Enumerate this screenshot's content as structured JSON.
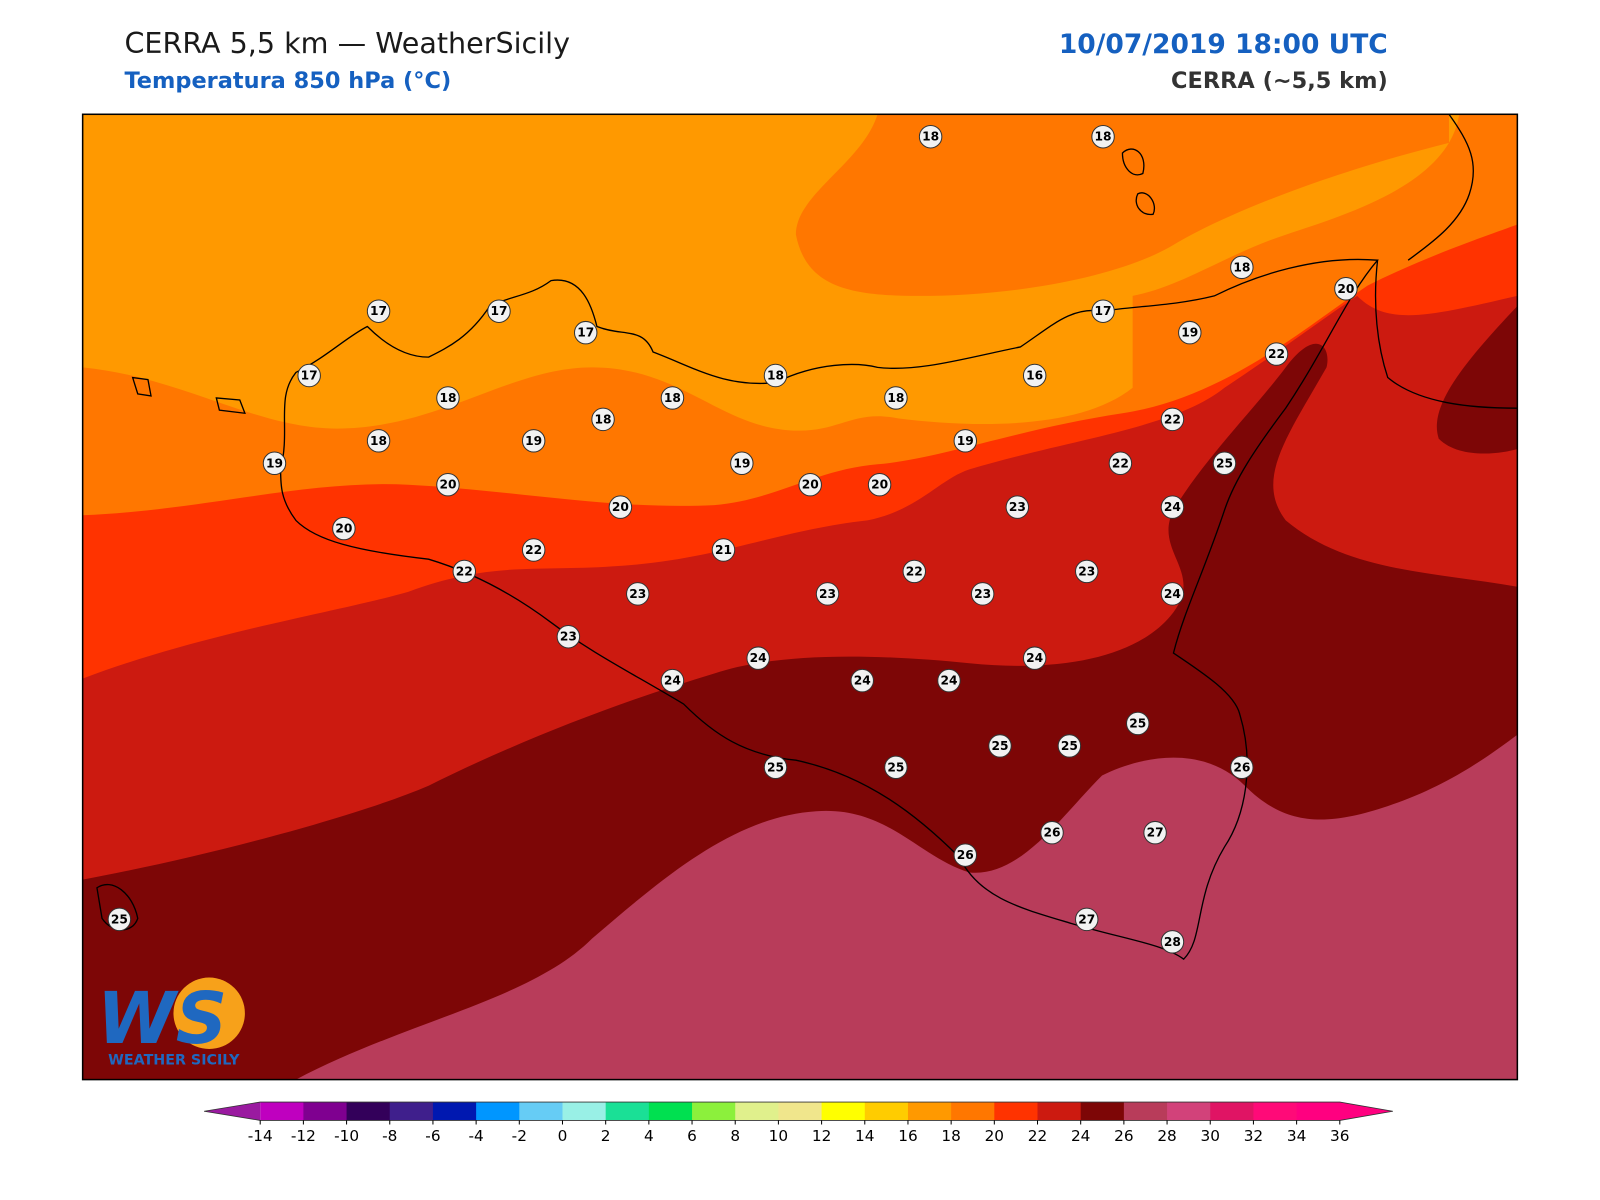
{
  "header": {
    "title": "CERRA 5,5 km — WeatherSicily",
    "subtitle": "Temperatura 850 hPa (°C)",
    "datetime": "10/07/2019 18:00 UTC",
    "model": "CERRA (~5,5 km)"
  },
  "logo": {
    "mark": "WS",
    "name": "WEATHER SICILY"
  },
  "stations": [
    18,
    18,
    18,
    20,
    17,
    17,
    17,
    17,
    19,
    17,
    18,
    16,
    22,
    18,
    18,
    18,
    18,
    18,
    19,
    19,
    22,
    19,
    19,
    22,
    25,
    20,
    20,
    20,
    20,
    23,
    24,
    20,
    22,
    21,
    22,
    22,
    23,
    23,
    23,
    23,
    24,
    23,
    24,
    24,
    24,
    24,
    24,
    25,
    25,
    25,
    25,
    25,
    26,
    26,
    27,
    26,
    27,
    28,
    25
  ],
  "colorbar": {
    "ticks": [
      -14,
      -12,
      -10,
      -8,
      -6,
      -4,
      -2,
      0,
      2,
      4,
      6,
      8,
      10,
      12,
      14,
      16,
      18,
      20,
      22,
      24,
      26,
      28,
      30,
      32,
      34,
      36
    ],
    "colors": [
      "#bf00bf",
      "#7f0090",
      "#33005a",
      "#3f1f8c",
      "#0018b0",
      "#0096ff",
      "#66ccf5",
      "#99f0e6",
      "#1ae096",
      "#00e050",
      "#8cf03c",
      "#e0f08c",
      "#f0e68c",
      "#ffff00",
      "#ffcc00",
      "#ff9900",
      "#ff7700",
      "#ff3300",
      "#cc1a10",
      "#7d0606",
      "#b83c5a",
      "#d2427a",
      "#e01464",
      "#ff0a78",
      "#ff0080"
    ],
    "extend_colors": [
      "#9a1aa0",
      "#ff0080"
    ]
  }
}
